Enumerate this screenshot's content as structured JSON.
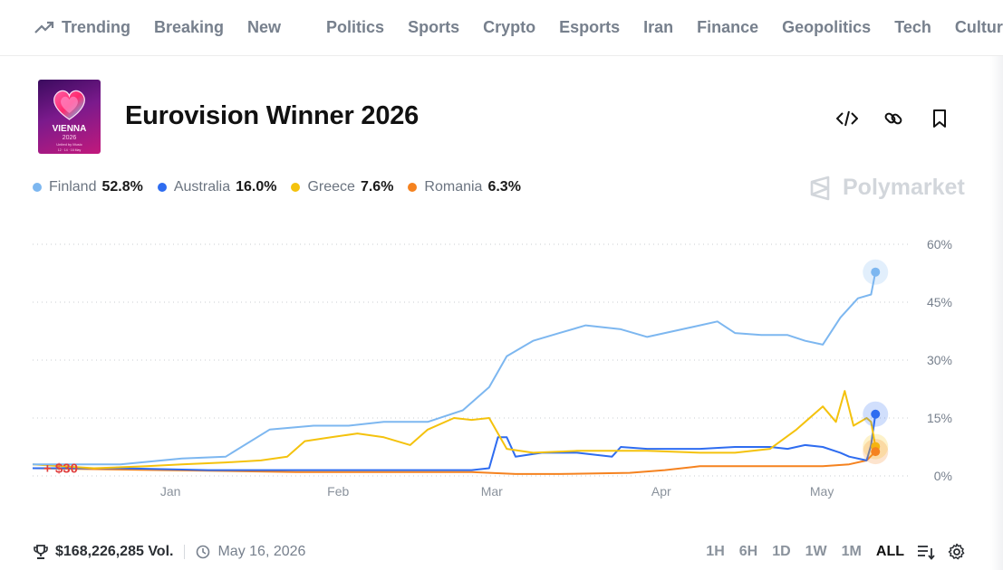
{
  "nav": {
    "items": [
      "Trending",
      "Breaking",
      "New",
      "Politics",
      "Sports",
      "Crypto",
      "Esports",
      "Iran",
      "Finance",
      "Geopolitics",
      "Tech",
      "Culture"
    ]
  },
  "market": {
    "title": "Eurovision Winner 2026",
    "image_text": [
      "VIENNA",
      "2026",
      "United by Music",
      "12 · 14 · 16 May"
    ]
  },
  "watermark": "Polymarket",
  "chart_data": {
    "type": "line",
    "x_labels": [
      "Jan",
      "Feb",
      "Mar",
      "Apr",
      "May"
    ],
    "y_ticks": [
      "60%",
      "45%",
      "30%",
      "15%",
      "0%"
    ],
    "ylim": [
      0,
      60
    ],
    "y_unit": "%",
    "grid": true,
    "legend_position": "top-left",
    "annotation": "+ $30",
    "series": [
      {
        "name": "Finland",
        "color": "#7db7f0",
        "current": "52.8%",
        "points": [
          [
            0.0,
            3
          ],
          [
            0.1,
            3
          ],
          [
            0.17,
            4.5
          ],
          [
            0.22,
            5
          ],
          [
            0.27,
            12
          ],
          [
            0.32,
            13
          ],
          [
            0.36,
            13
          ],
          [
            0.4,
            14
          ],
          [
            0.45,
            14
          ],
          [
            0.49,
            17
          ],
          [
            0.52,
            23
          ],
          [
            0.54,
            31
          ],
          [
            0.57,
            35
          ],
          [
            0.6,
            37
          ],
          [
            0.63,
            39
          ],
          [
            0.67,
            38
          ],
          [
            0.7,
            36
          ],
          [
            0.74,
            38
          ],
          [
            0.78,
            40
          ],
          [
            0.8,
            37
          ],
          [
            0.83,
            36.5
          ],
          [
            0.86,
            36.5
          ],
          [
            0.88,
            35
          ],
          [
            0.9,
            34
          ],
          [
            0.92,
            41
          ],
          [
            0.94,
            46
          ],
          [
            0.955,
            47
          ],
          [
            0.96,
            52.8
          ]
        ]
      },
      {
        "name": "Australia",
        "color": "#2e6cf0",
        "current": "16.0%",
        "points": [
          [
            0.0,
            2
          ],
          [
            0.1,
            2
          ],
          [
            0.2,
            1.5
          ],
          [
            0.3,
            1.5
          ],
          [
            0.4,
            1.5
          ],
          [
            0.45,
            1.5
          ],
          [
            0.5,
            1.5
          ],
          [
            0.52,
            2
          ],
          [
            0.53,
            10
          ],
          [
            0.54,
            10
          ],
          [
            0.55,
            5
          ],
          [
            0.58,
            6
          ],
          [
            0.62,
            6
          ],
          [
            0.66,
            5
          ],
          [
            0.67,
            7.5
          ],
          [
            0.7,
            7
          ],
          [
            0.76,
            7
          ],
          [
            0.8,
            7.5
          ],
          [
            0.84,
            7.5
          ],
          [
            0.86,
            7
          ],
          [
            0.88,
            8
          ],
          [
            0.9,
            7.5
          ],
          [
            0.92,
            6
          ],
          [
            0.93,
            5
          ],
          [
            0.95,
            4
          ],
          [
            0.955,
            8
          ],
          [
            0.96,
            16
          ]
        ]
      },
      {
        "name": "Greece",
        "color": "#f4c20d",
        "current": "7.6%",
        "points": [
          [
            0.0,
            3
          ],
          [
            0.07,
            2
          ],
          [
            0.13,
            2.5
          ],
          [
            0.17,
            3
          ],
          [
            0.22,
            3.5
          ],
          [
            0.26,
            4
          ],
          [
            0.29,
            5
          ],
          [
            0.31,
            9
          ],
          [
            0.34,
            10
          ],
          [
            0.37,
            11
          ],
          [
            0.4,
            10
          ],
          [
            0.43,
            8
          ],
          [
            0.45,
            12
          ],
          [
            0.48,
            15
          ],
          [
            0.5,
            14.5
          ],
          [
            0.52,
            15
          ],
          [
            0.54,
            7
          ],
          [
            0.57,
            6
          ],
          [
            0.62,
            6.5
          ],
          [
            0.66,
            6.5
          ],
          [
            0.7,
            6.5
          ],
          [
            0.76,
            6
          ],
          [
            0.8,
            6
          ],
          [
            0.84,
            7
          ],
          [
            0.87,
            12
          ],
          [
            0.9,
            18
          ],
          [
            0.915,
            14
          ],
          [
            0.925,
            22
          ],
          [
            0.935,
            13
          ],
          [
            0.95,
            15
          ],
          [
            0.955,
            14
          ],
          [
            0.96,
            7.6
          ]
        ]
      },
      {
        "name": "Romania",
        "color": "#f5821f",
        "current": "6.3%",
        "points": [
          [
            0.0,
            2
          ],
          [
            0.15,
            1.5
          ],
          [
            0.3,
            1
          ],
          [
            0.45,
            1
          ],
          [
            0.5,
            1
          ],
          [
            0.55,
            0.5
          ],
          [
            0.6,
            0.5
          ],
          [
            0.68,
            0.8
          ],
          [
            0.72,
            1.5
          ],
          [
            0.76,
            2.5
          ],
          [
            0.8,
            2.5
          ],
          [
            0.85,
            2.5
          ],
          [
            0.9,
            2.5
          ],
          [
            0.93,
            3
          ],
          [
            0.95,
            4
          ],
          [
            0.96,
            6.3
          ]
        ]
      }
    ]
  },
  "footer": {
    "volume": "$168,226,285 Vol.",
    "date": "May 16, 2026",
    "ranges": [
      "1H",
      "6H",
      "1D",
      "1W",
      "1M",
      "ALL"
    ],
    "active_range": "ALL"
  }
}
